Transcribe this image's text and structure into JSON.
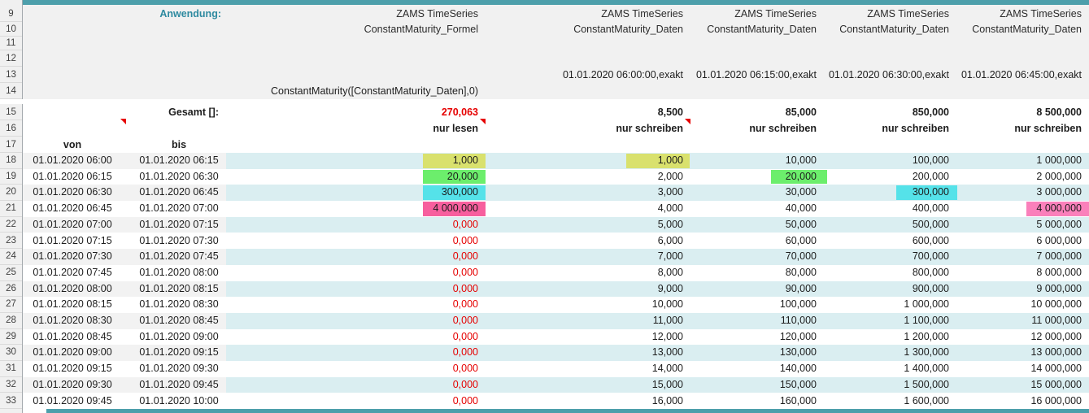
{
  "colors": {
    "teal_bar": "#4d9fab",
    "teal_text": "#2e8aa0",
    "header_bg": "#f1f1f1",
    "band_gray": "#f2f2f2",
    "band_cyan": "#daeef1",
    "red_text": "#e60000",
    "hl_yellow": "#d9e16d",
    "hl_green": "#6cee6c",
    "hl_cyan": "#55e2e9",
    "hl_pink": "#f75f9e",
    "hl_pink2": "#fa80bb"
  },
  "labels": {
    "anwendung": "Anwendung:",
    "gesamt": "Gesamt []:",
    "von": "von",
    "bis": "bis"
  },
  "gutter": {
    "row_numbers": [
      "9",
      "10",
      "11",
      "12",
      "13",
      "14",
      "15",
      "16",
      "17",
      "18",
      "19",
      "20",
      "21",
      "22",
      "23",
      "24",
      "25",
      "26",
      "27",
      "28",
      "29",
      "30",
      "31",
      "32",
      "33"
    ]
  },
  "columns": [
    {
      "app": "ZAMS TimeSeries",
      "series": "ConstantMaturity_Formel",
      "timestamp": "",
      "formula": "ConstantMaturity([ConstantMaturity_Daten],0)",
      "total": "270,063",
      "total_red": true,
      "mode": "nur lesen",
      "comment": true
    },
    {
      "app": "ZAMS TimeSeries",
      "series": "ConstantMaturity_Daten",
      "timestamp": "01.01.2020 06:00:00,exakt",
      "formula": "",
      "total": "8,500",
      "total_red": false,
      "mode": "nur schreiben",
      "comment": true
    },
    {
      "app": "ZAMS TimeSeries",
      "series": "ConstantMaturity_Daten",
      "timestamp": "01.01.2020 06:15:00,exakt",
      "formula": "",
      "total": "85,000",
      "total_red": false,
      "mode": "nur schreiben",
      "comment": false
    },
    {
      "app": "ZAMS TimeSeries",
      "series": "ConstantMaturity_Daten",
      "timestamp": "01.01.2020 06:30:00,exakt",
      "formula": "",
      "total": "850,000",
      "total_red": false,
      "mode": "nur schreiben",
      "comment": false
    },
    {
      "app": "ZAMS TimeSeries",
      "series": "ConstantMaturity_Daten",
      "timestamp": "01.01.2020 06:45:00,exakt",
      "formula": "",
      "total": "8 500,000",
      "total_red": false,
      "mode": "nur schreiben",
      "comment": false
    }
  ],
  "rows": [
    {
      "von": "01.01.2020 06:00",
      "bis": "01.01.2020 06:15",
      "values": [
        "1,000",
        "1,000",
        "10,000",
        "100,000",
        "1 000,000"
      ],
      "highlights": [
        "yellow",
        "yellow",
        null,
        null,
        null
      ],
      "red0": false
    },
    {
      "von": "01.01.2020 06:15",
      "bis": "01.01.2020 06:30",
      "values": [
        "20,000",
        "2,000",
        "20,000",
        "200,000",
        "2 000,000"
      ],
      "highlights": [
        "green",
        null,
        "green",
        null,
        null
      ],
      "red0": false
    },
    {
      "von": "01.01.2020 06:30",
      "bis": "01.01.2020 06:45",
      "values": [
        "300,000",
        "3,000",
        "30,000",
        "300,000",
        "3 000,000"
      ],
      "highlights": [
        "cyan",
        null,
        null,
        "cyan",
        null
      ],
      "red0": false
    },
    {
      "von": "01.01.2020 06:45",
      "bis": "01.01.2020 07:00",
      "values": [
        "4 000,000",
        "4,000",
        "40,000",
        "400,000",
        "4 000,000"
      ],
      "highlights": [
        "pink",
        null,
        null,
        null,
        "pink2"
      ],
      "red0": false
    },
    {
      "von": "01.01.2020 07:00",
      "bis": "01.01.2020 07:15",
      "values": [
        "0,000",
        "5,000",
        "50,000",
        "500,000",
        "5 000,000"
      ],
      "highlights": [
        null,
        null,
        null,
        null,
        null
      ],
      "red0": true
    },
    {
      "von": "01.01.2020 07:15",
      "bis": "01.01.2020 07:30",
      "values": [
        "0,000",
        "6,000",
        "60,000",
        "600,000",
        "6 000,000"
      ],
      "highlights": [
        null,
        null,
        null,
        null,
        null
      ],
      "red0": true
    },
    {
      "von": "01.01.2020 07:30",
      "bis": "01.01.2020 07:45",
      "values": [
        "0,000",
        "7,000",
        "70,000",
        "700,000",
        "7 000,000"
      ],
      "highlights": [
        null,
        null,
        null,
        null,
        null
      ],
      "red0": true
    },
    {
      "von": "01.01.2020 07:45",
      "bis": "01.01.2020 08:00",
      "values": [
        "0,000",
        "8,000",
        "80,000",
        "800,000",
        "8 000,000"
      ],
      "highlights": [
        null,
        null,
        null,
        null,
        null
      ],
      "red0": true
    },
    {
      "von": "01.01.2020 08:00",
      "bis": "01.01.2020 08:15",
      "values": [
        "0,000",
        "9,000",
        "90,000",
        "900,000",
        "9 000,000"
      ],
      "highlights": [
        null,
        null,
        null,
        null,
        null
      ],
      "red0": true
    },
    {
      "von": "01.01.2020 08:15",
      "bis": "01.01.2020 08:30",
      "values": [
        "0,000",
        "10,000",
        "100,000",
        "1 000,000",
        "10 000,000"
      ],
      "highlights": [
        null,
        null,
        null,
        null,
        null
      ],
      "red0": true
    },
    {
      "von": "01.01.2020 08:30",
      "bis": "01.01.2020 08:45",
      "values": [
        "0,000",
        "11,000",
        "110,000",
        "1 100,000",
        "11 000,000"
      ],
      "highlights": [
        null,
        null,
        null,
        null,
        null
      ],
      "red0": true
    },
    {
      "von": "01.01.2020 08:45",
      "bis": "01.01.2020 09:00",
      "values": [
        "0,000",
        "12,000",
        "120,000",
        "1 200,000",
        "12 000,000"
      ],
      "highlights": [
        null,
        null,
        null,
        null,
        null
      ],
      "red0": true
    },
    {
      "von": "01.01.2020 09:00",
      "bis": "01.01.2020 09:15",
      "values": [
        "0,000",
        "13,000",
        "130,000",
        "1 300,000",
        "13 000,000"
      ],
      "highlights": [
        null,
        null,
        null,
        null,
        null
      ],
      "red0": true
    },
    {
      "von": "01.01.2020 09:15",
      "bis": "01.01.2020 09:30",
      "values": [
        "0,000",
        "14,000",
        "140,000",
        "1 400,000",
        "14 000,000"
      ],
      "highlights": [
        null,
        null,
        null,
        null,
        null
      ],
      "red0": true
    },
    {
      "von": "01.01.2020 09:30",
      "bis": "01.01.2020 09:45",
      "values": [
        "0,000",
        "15,000",
        "150,000",
        "1 500,000",
        "15 000,000"
      ],
      "highlights": [
        null,
        null,
        null,
        null,
        null
      ],
      "red0": true
    },
    {
      "von": "01.01.2020 09:45",
      "bis": "01.01.2020 10:00",
      "values": [
        "0,000",
        "16,000",
        "160,000",
        "1 600,000",
        "16 000,000"
      ],
      "highlights": [
        null,
        null,
        null,
        null,
        null
      ],
      "red0": true
    }
  ]
}
